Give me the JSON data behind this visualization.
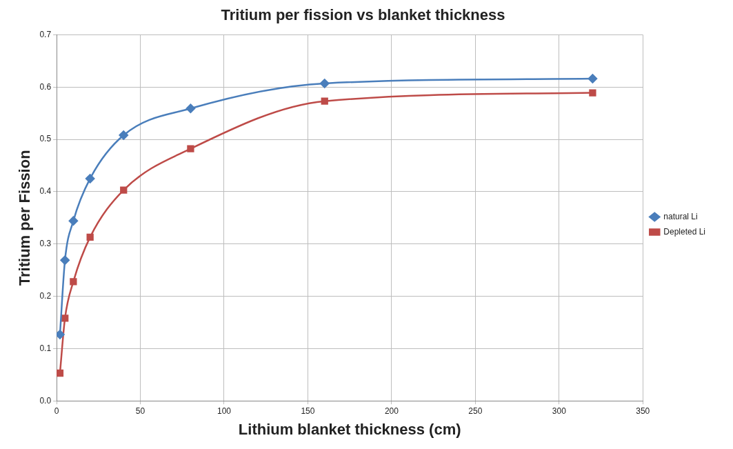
{
  "chart_data": {
    "type": "line",
    "title": "Tritium per fission vs blanket thickness",
    "xlabel": "Lithium blanket thickness (cm)",
    "ylabel": "Tritium per Fission",
    "x": [
      2,
      5,
      10,
      20,
      40,
      80,
      160,
      320
    ],
    "series": [
      {
        "name": "natural Li",
        "color": "#4a7ebb",
        "marker": "diamond",
        "values": [
          0.127,
          0.269,
          0.344,
          0.425,
          0.508,
          0.559,
          0.607,
          0.616
        ]
      },
      {
        "name": "Depleted Li",
        "color": "#be4b48",
        "marker": "square",
        "values": [
          0.053,
          0.158,
          0.228,
          0.313,
          0.403,
          0.482,
          0.573,
          0.589
        ]
      }
    ],
    "xlim": [
      0,
      350
    ],
    "xticks": [
      0,
      50,
      100,
      150,
      200,
      250,
      300,
      350
    ],
    "ylim": [
      0,
      0.7
    ],
    "yticks": [
      {
        "value": 0,
        "label": "0.0"
      },
      {
        "value": 0.1,
        "label": "0.1"
      },
      {
        "value": 0.2,
        "label": "0.2"
      },
      {
        "value": 0.3,
        "label": "0.3"
      },
      {
        "value": 0.4,
        "label": "0.4"
      },
      {
        "value": 0.5,
        "label": "0.5"
      },
      {
        "value": 0.6,
        "label": "0.6"
      },
      {
        "value": 0.7,
        "label": "0.7"
      }
    ],
    "grid": true,
    "legend": "right"
  }
}
